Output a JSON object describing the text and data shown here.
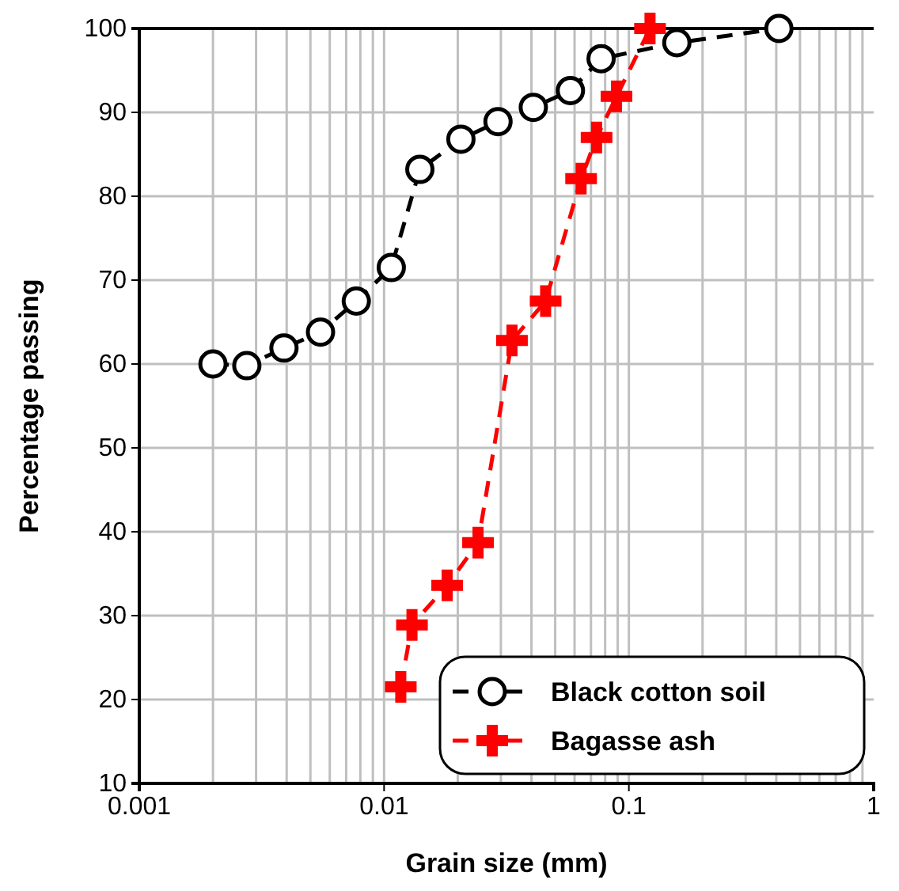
{
  "chart_data": {
    "type": "line",
    "xlabel": "Grain size (mm)",
    "ylabel": "Percentage passing",
    "log": "x",
    "grid": true,
    "legend": "bottom right",
    "line_style": "dashed",
    "xlim": [
      0.001,
      1
    ],
    "xticks": [
      0.001,
      0.01,
      0.1,
      1
    ],
    "ylim": [
      10,
      100
    ],
    "yticks": [
      10,
      20,
      30,
      40,
      50,
      60,
      70,
      80,
      90,
      100
    ],
    "series": [
      {
        "name": "Black cotton soil",
        "color": "#000000",
        "marker": "circle",
        "x": [
          0.002,
          0.00275,
          0.0039,
          0.0055,
          0.0077,
          0.0107,
          0.014,
          0.0206,
          0.0292,
          0.0407,
          0.0577,
          0.077,
          0.157,
          0.41
        ],
        "values": [
          60,
          59.8,
          61.9,
          63.8,
          67.5,
          71.5,
          83.2,
          86.8,
          88.9,
          90.6,
          92.6,
          96.4,
          98.3,
          100
        ]
      },
      {
        "name": "Bagasse ash",
        "color": "#ff0000",
        "marker": "cross",
        "x": [
          0.0117,
          0.013,
          0.0181,
          0.0242,
          0.0333,
          0.0457,
          0.0638,
          0.0738,
          0.089,
          0.122
        ],
        "values": [
          21.5,
          28.9,
          33.6,
          38.7,
          62.8,
          67.5,
          82.1,
          87,
          91.9,
          100
        ]
      }
    ]
  }
}
